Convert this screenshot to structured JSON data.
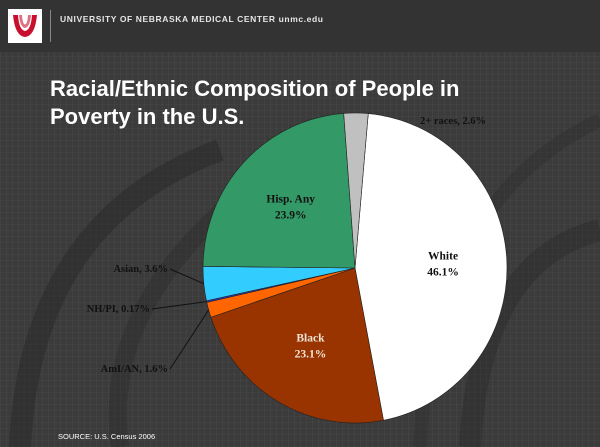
{
  "header": {
    "org_name": "UNIVERSITY OF NEBRASKA MEDICAL CENTER unmc.edu",
    "accent_color": "#c8102e"
  },
  "slide": {
    "title_line1": "Racial/Ethnic Composition of People in",
    "title_line2": "Poverty in the U.S.",
    "source": "SOURCE: U.S. Census 2006"
  },
  "chart_data": {
    "type": "pie",
    "title": "Racial/Ethnic Composition of People in Poverty in the U.S.",
    "slices": [
      {
        "name": "White",
        "value": 46.1,
        "label": "46.1%",
        "color": "#ffffff"
      },
      {
        "name": "Black",
        "value": 23.1,
        "label": "23.1%",
        "color": "#993300"
      },
      {
        "name": "AmI/AN",
        "value": 1.6,
        "label": "AmI/AN, 1.6%",
        "color": "#ff6600"
      },
      {
        "name": "NH/PI",
        "value": 0.17,
        "label": "NH/PI, 0.17%",
        "color": "#3333cc"
      },
      {
        "name": "Asian",
        "value": 3.6,
        "label": "Asian, 3.6%",
        "color": "#33ccff"
      },
      {
        "name": "Hisp. Any",
        "value": 23.9,
        "label": "23.9%",
        "color": "#339966"
      },
      {
        "name": "2+ races",
        "value": 2.6,
        "label": "2+ races, 2.6%",
        "color": "#c0c0c0"
      }
    ]
  }
}
